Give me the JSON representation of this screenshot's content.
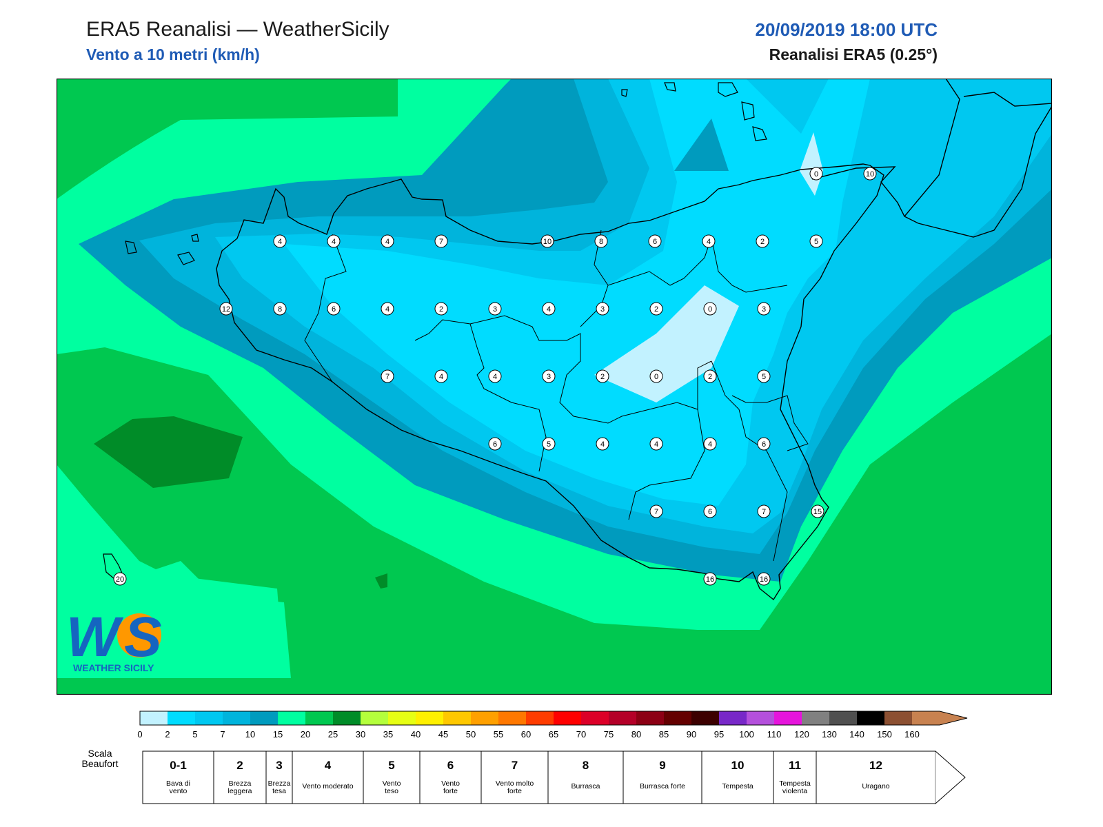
{
  "header": {
    "title": "ERA5 Reanalisi — WeatherSicily",
    "subtitle": "Vento a 10 metri (km/h)",
    "datetime": "20/09/2019 18:00 UTC",
    "source": "Reanalisi ERA5 (0.25°)"
  },
  "logo": {
    "text": "WEATHER SICILY"
  },
  "station_values": [
    [
      "4",
      "4",
      "4",
      "7",
      "10",
      "8",
      "6",
      "4",
      "2",
      "5"
    ],
    [
      "12",
      "8",
      "6",
      "4",
      "2",
      "3",
      "4",
      "3",
      "2",
      "0",
      "3"
    ],
    [
      "7",
      "4",
      "4",
      "3",
      "2",
      "0",
      "2",
      "5"
    ],
    [
      "6",
      "5",
      "4",
      "4",
      "4",
      "6"
    ],
    [
      "7",
      "6",
      "7",
      "15"
    ],
    [
      "20",
      "16",
      "16"
    ]
  ],
  "colorbar": {
    "ticks": [
      "0",
      "2",
      "5",
      "7",
      "10",
      "15",
      "20",
      "25",
      "30",
      "35",
      "40",
      "45",
      "50",
      "55",
      "60",
      "65",
      "70",
      "75",
      "80",
      "85",
      "90",
      "95",
      "100",
      "110",
      "120",
      "130",
      "140",
      "150",
      "160"
    ],
    "colors": [
      "#c2f2ff",
      "#00dcff",
      "#00c8f0",
      "#00b4dc",
      "#009bbe",
      "#00ffa0",
      "#00c850",
      "#008c28",
      "#b4ff3c",
      "#e6ff14",
      "#fff000",
      "#ffc800",
      "#ffa000",
      "#ff7800",
      "#ff3c00",
      "#ff0000",
      "#dc0028",
      "#b40028",
      "#8c0014",
      "#640000",
      "#3c0000",
      "#7828c8",
      "#b450dc",
      "#e614dc",
      "#808080",
      "#505050",
      "#000000",
      "#8c5032",
      "#c88250"
    ]
  },
  "beaufort": {
    "label": "Scala Beaufort",
    "levels": [
      {
        "num": "0-1",
        "desc": "Bava di vento"
      },
      {
        "num": "2",
        "desc": "Brezza leggera"
      },
      {
        "num": "3",
        "desc": "Brezza tesa"
      },
      {
        "num": "4",
        "desc": "Vento moderato"
      },
      {
        "num": "5",
        "desc": "Vento teso"
      },
      {
        "num": "6",
        "desc": "Vento forte"
      },
      {
        "num": "7",
        "desc": "Vento molto forte"
      },
      {
        "num": "8",
        "desc": "Burrasca"
      },
      {
        "num": "9",
        "desc": "Burrasca forte"
      },
      {
        "num": "10",
        "desc": "Tempesta"
      },
      {
        "num": "11",
        "desc": "Tempesta violenta"
      },
      {
        "num": "12",
        "desc": "Uragano"
      }
    ]
  }
}
